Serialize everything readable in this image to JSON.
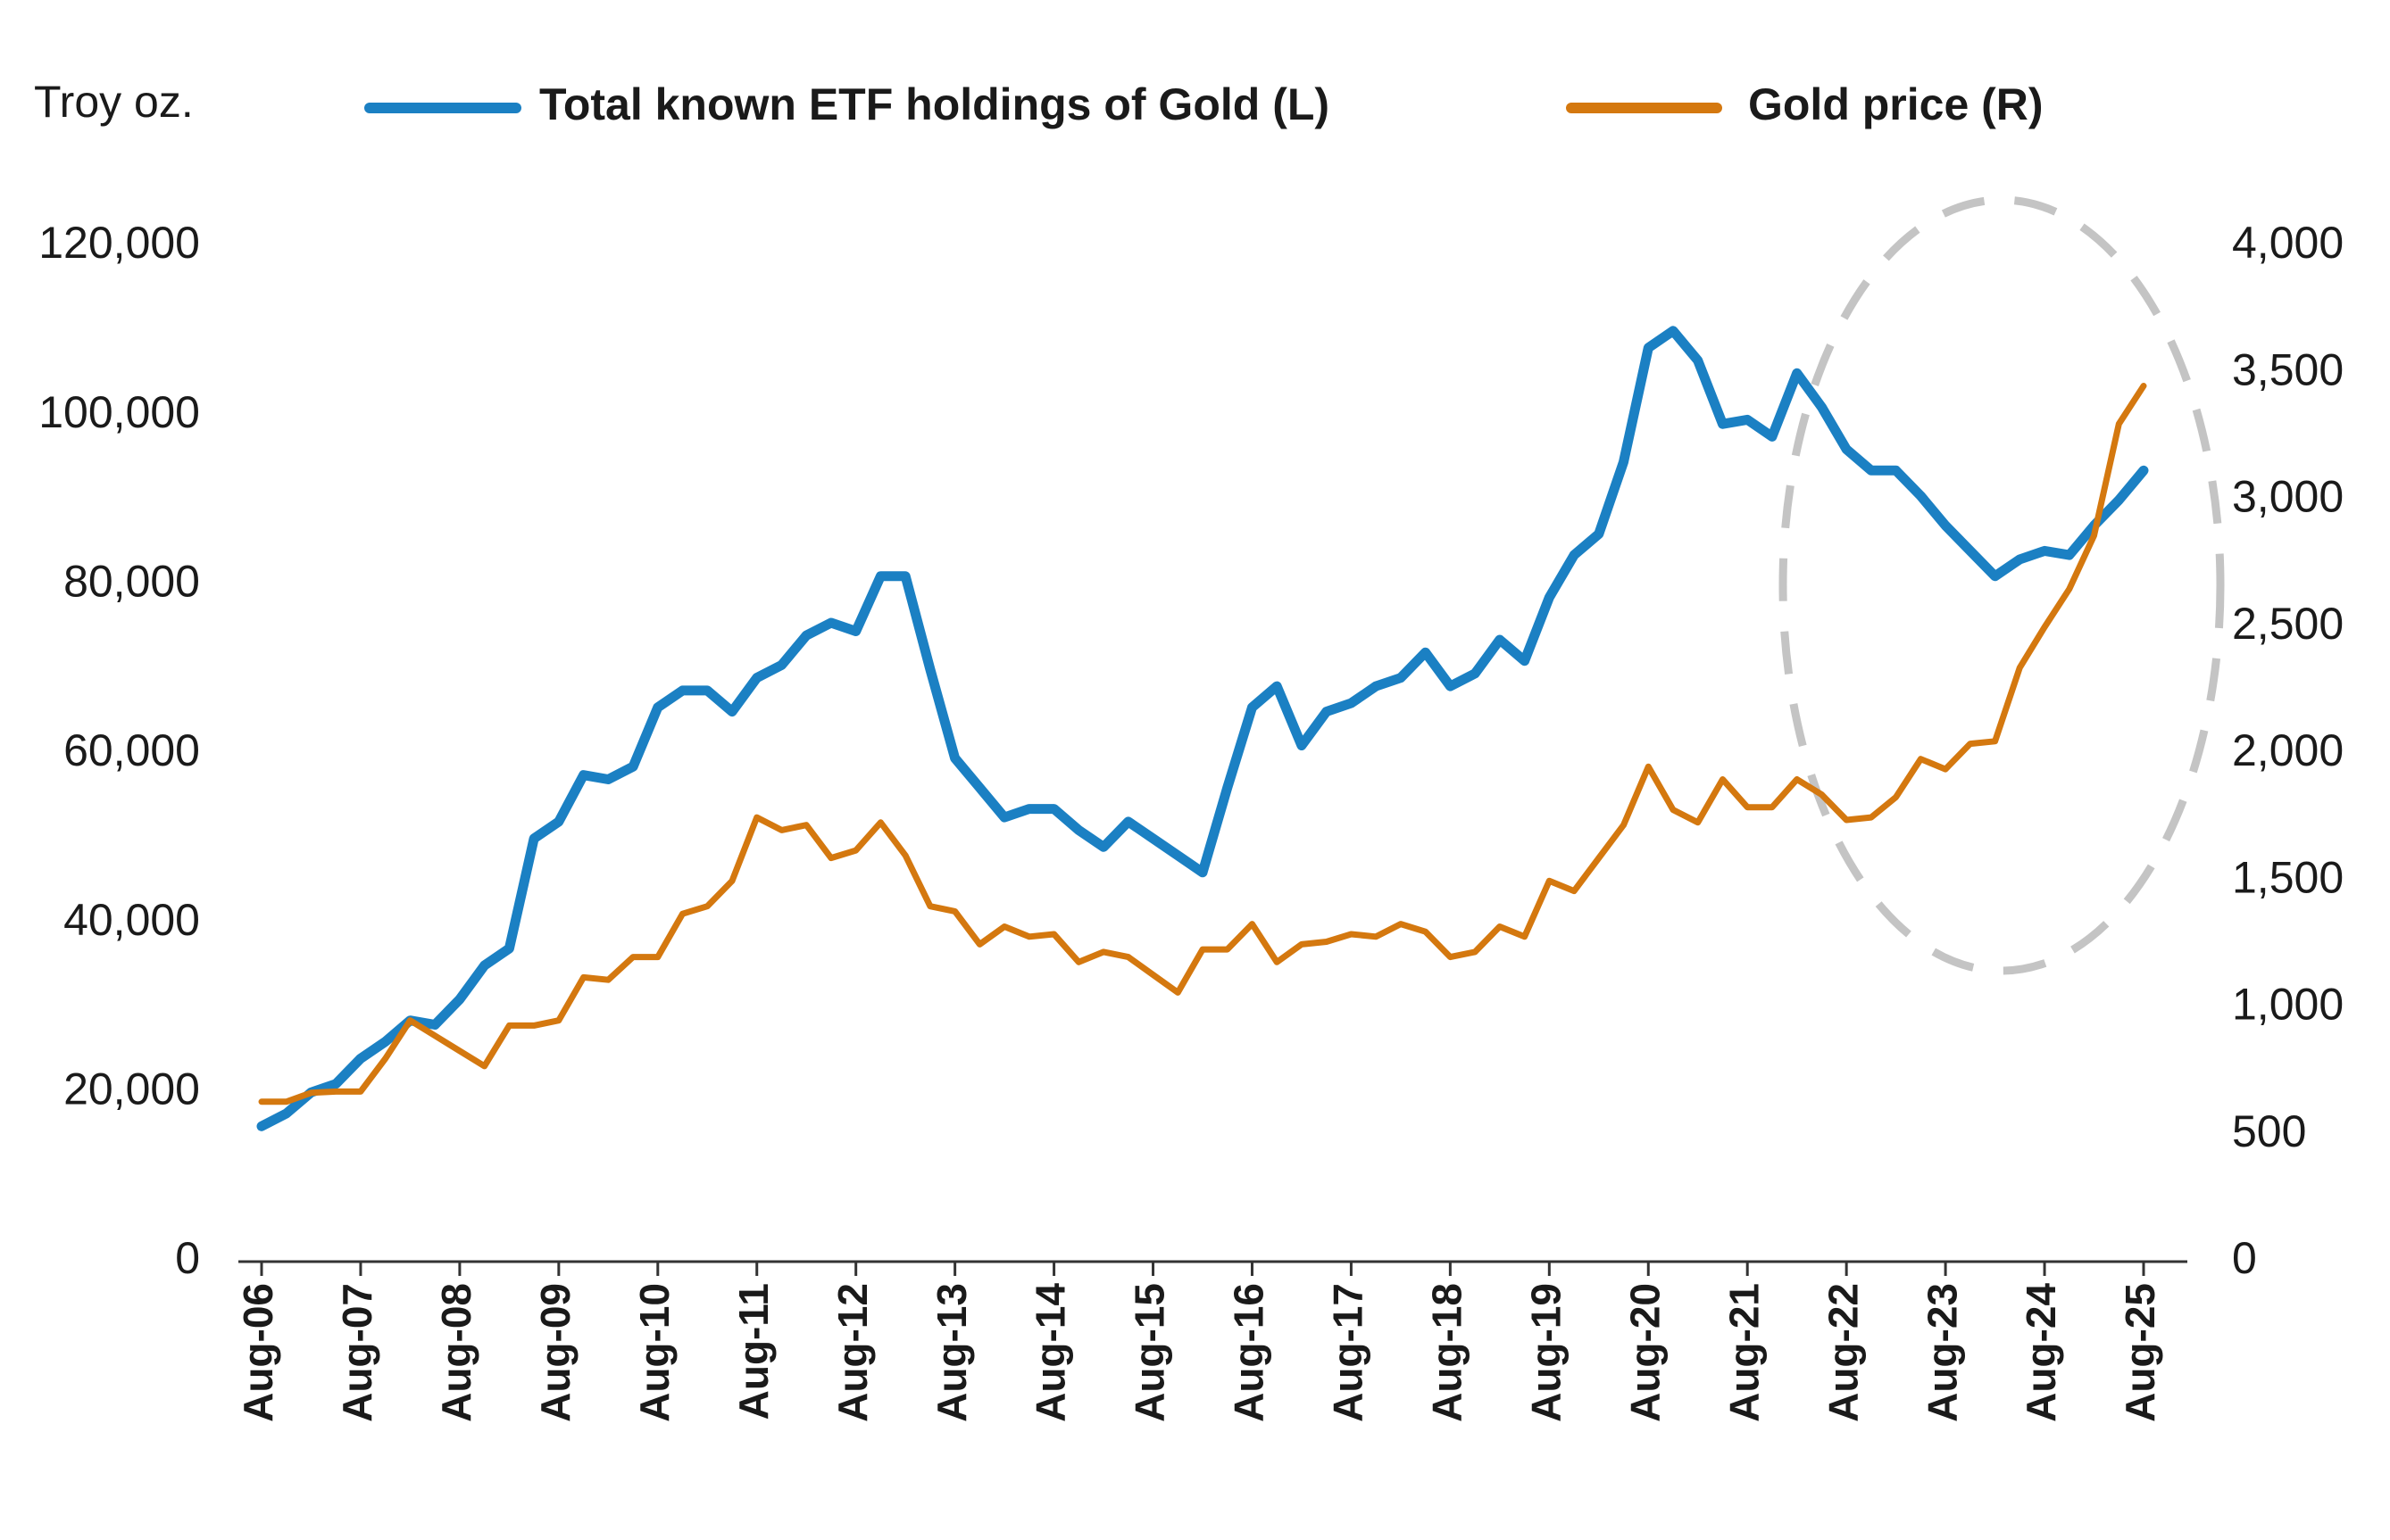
{
  "chart_data": {
    "type": "line",
    "y_label": "Troy oz.",
    "categories": [
      "Aug-06",
      null,
      null,
      null,
      "Aug-07",
      null,
      null,
      null,
      "Aug-08",
      null,
      null,
      null,
      "Aug-09",
      null,
      null,
      null,
      "Aug-10",
      null,
      null,
      null,
      "Aug-11",
      null,
      null,
      null,
      "Aug-12",
      null,
      null,
      null,
      "Aug-13",
      null,
      null,
      null,
      "Aug-14",
      null,
      null,
      null,
      "Aug-15",
      null,
      null,
      null,
      "Aug-16",
      null,
      null,
      null,
      "Aug-17",
      null,
      null,
      null,
      "Aug-18",
      null,
      null,
      null,
      "Aug-19",
      null,
      null,
      null,
      "Aug-20",
      null,
      null,
      null,
      "Aug-21",
      null,
      null,
      null,
      "Aug-22",
      null,
      null,
      null,
      "Aug-23",
      null,
      null,
      null,
      "Aug-24",
      null,
      null,
      null,
      "Aug-25"
    ],
    "series": [
      {
        "name": "Total known ETF holdings of Gold (L)",
        "color": "#1b80c3",
        "axis": "y",
        "values": [
          16000,
          17500,
          20000,
          21000,
          24000,
          26000,
          28500,
          28000,
          31000,
          35000,
          37000,
          50000,
          52000,
          57500,
          57000,
          58500,
          65500,
          67500,
          67500,
          65000,
          69000,
          70500,
          74000,
          75500,
          74500,
          81000,
          81000,
          70000,
          59500,
          56000,
          52500,
          53500,
          53500,
          51000,
          49000,
          52000,
          50000,
          48000,
          46000,
          56000,
          65500,
          68000,
          61000,
          65000,
          66000,
          68000,
          69000,
          72000,
          68000,
          69500,
          73500,
          71000,
          78500,
          83500,
          86000,
          94500,
          108000,
          110000,
          106500,
          99000,
          99500,
          97500,
          105000,
          101000,
          96000,
          93500,
          93500,
          90500,
          87000,
          84000,
          81000,
          83000,
          84000,
          83500,
          87000,
          90000,
          93500
        ]
      },
      {
        "name": "Gold price (R)",
        "color": "#d4780f",
        "axis": "y2",
        "values": [
          630,
          630,
          665,
          670,
          670,
          800,
          950,
          890,
          830,
          770,
          930,
          930,
          950,
          1120,
          1110,
          1200,
          1200,
          1370,
          1400,
          1500,
          1750,
          1700,
          1720,
          1590,
          1620,
          1730,
          1600,
          1400,
          1380,
          1250,
          1320,
          1280,
          1290,
          1180,
          1220,
          1200,
          1130,
          1060,
          1230,
          1230,
          1330,
          1180,
          1250,
          1260,
          1290,
          1280,
          1330,
          1300,
          1200,
          1220,
          1320,
          1280,
          1500,
          1460,
          1590,
          1720,
          1950,
          1780,
          1730,
          1900,
          1790,
          1790,
          1900,
          1840,
          1740,
          1750,
          1830,
          1980,
          1940,
          2040,
          2050,
          2340,
          2500,
          2650,
          2860,
          3300,
          3450
        ]
      }
    ],
    "ylim": [
      0,
      120000
    ],
    "yticks": [
      0,
      {
        "value": 20000,
        "label": "20,000"
      },
      {
        "value": 40000,
        "label": "40,000"
      },
      {
        "value": 60000,
        "label": "60,000"
      },
      {
        "value": 80000,
        "label": "80,000"
      },
      {
        "value": 100000,
        "label": "100,000"
      },
      {
        "value": 120000,
        "label": "120,000"
      }
    ],
    "y2lim": [
      0,
      4000
    ],
    "y2ticks": [
      0,
      500,
      {
        "value": 1000,
        "label": "1,000"
      },
      {
        "value": 1500,
        "label": "1,500"
      },
      {
        "value": 2000,
        "label": "2,000"
      },
      {
        "value": 2500,
        "label": "2,500"
      },
      {
        "value": 3000,
        "label": "3,000"
      },
      {
        "value": 3500,
        "label": "3,500"
      },
      {
        "value": 4000,
        "label": "4,000"
      }
    ],
    "grid": false
  }
}
